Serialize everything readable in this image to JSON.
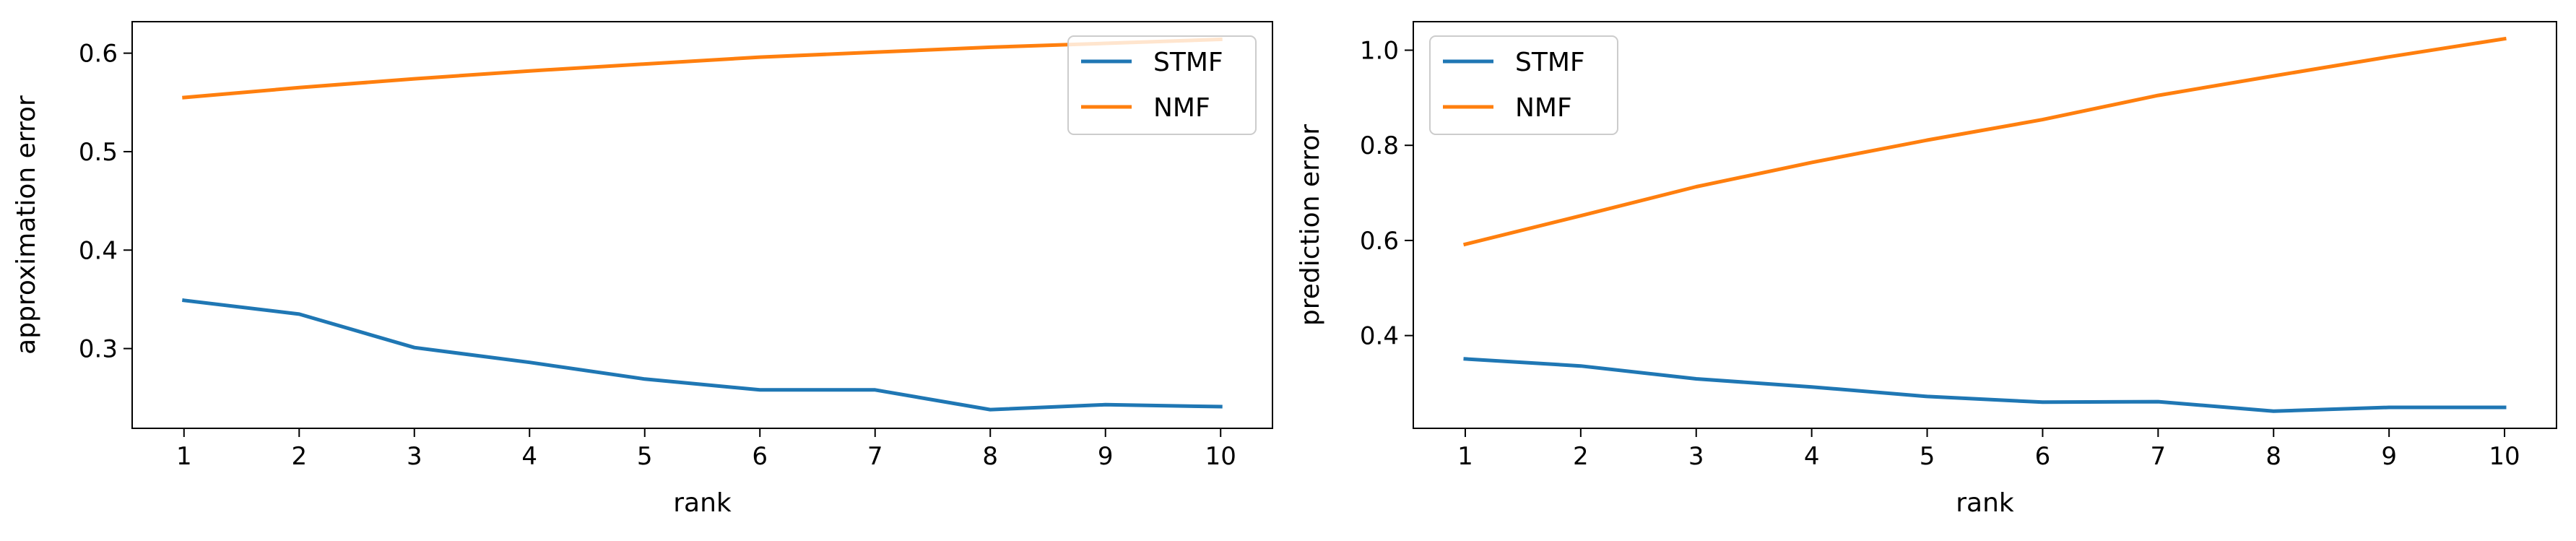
{
  "chart_data": [
    {
      "type": "line",
      "xlabel": "rank",
      "ylabel": "approximation error",
      "x": [
        1,
        2,
        3,
        4,
        5,
        6,
        7,
        8,
        9,
        10
      ],
      "xticks": [
        "1",
        "2",
        "3",
        "4",
        "5",
        "6",
        "7",
        "8",
        "9",
        "10"
      ],
      "yticks": [
        0.3,
        0.4,
        0.5,
        0.6
      ],
      "ytick_labels": [
        "0.3",
        "0.4",
        "0.5",
        "0.6"
      ],
      "xlim": [
        0.55,
        10.45
      ],
      "ylim": [
        0.219,
        0.632
      ],
      "grid": false,
      "legend": "upper right",
      "series": [
        {
          "name": "STMF",
          "color": "#1f77b4",
          "values": [
            0.349,
            0.335,
            0.301,
            0.286,
            0.269,
            0.258,
            0.258,
            0.238,
            0.243,
            0.241
          ]
        },
        {
          "name": "NMF",
          "color": "#ff7f0e",
          "values": [
            0.555,
            0.565,
            0.574,
            0.582,
            0.589,
            0.596,
            0.601,
            0.606,
            0.61,
            0.614
          ]
        }
      ]
    },
    {
      "type": "line",
      "xlabel": "rank",
      "ylabel": "prediction error",
      "x": [
        1,
        2,
        3,
        4,
        5,
        6,
        7,
        8,
        9,
        10
      ],
      "xticks": [
        "1",
        "2",
        "3",
        "4",
        "5",
        "6",
        "7",
        "8",
        "9",
        "10"
      ],
      "yticks": [
        0.4,
        0.6,
        0.8,
        1.0
      ],
      "ytick_labels": [
        "0.4",
        "0.6",
        "0.8",
        "1.0"
      ],
      "xlim": [
        0.55,
        10.45
      ],
      "ylim": [
        0.205,
        1.06
      ],
      "grid": false,
      "legend": "upper left",
      "series": [
        {
          "name": "STMF",
          "color": "#1f77b4",
          "values": [
            0.351,
            0.336,
            0.309,
            0.292,
            0.272,
            0.26,
            0.261,
            0.241,
            0.249,
            0.249
          ]
        },
        {
          "name": "NMF",
          "color": "#ff7f0e",
          "values": [
            0.592,
            0.652,
            0.713,
            0.764,
            0.811,
            0.854,
            0.905,
            0.946,
            0.986,
            1.024
          ]
        }
      ]
    }
  ]
}
